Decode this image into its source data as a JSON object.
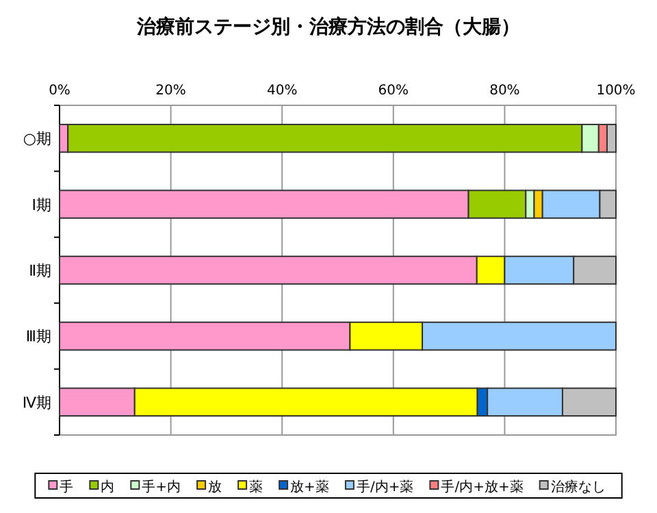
{
  "chart_data": {
    "type": "bar",
    "orientation": "horizontal",
    "stacked": true,
    "title": "治療前ステージ別・治療方法の割合（大腸）",
    "categories": [
      "○期",
      "Ⅰ期",
      "Ⅱ期",
      "Ⅲ期",
      "Ⅳ期"
    ],
    "series": [
      {
        "name": "手",
        "color": "#ff99cc",
        "values": [
          1.5,
          73.5,
          75.0,
          52.2,
          13.5
        ]
      },
      {
        "name": "内",
        "color": "#99cc00",
        "values": [
          92.4,
          10.3,
          0,
          0,
          0
        ]
      },
      {
        "name": "手+内",
        "color": "#ccffcc",
        "values": [
          3.0,
          1.5,
          0,
          0,
          0
        ]
      },
      {
        "name": "放",
        "color": "#ffcc00",
        "values": [
          0,
          1.5,
          0,
          0,
          0
        ]
      },
      {
        "name": "薬",
        "color": "#ffff00",
        "values": [
          0,
          0,
          5.0,
          13.0,
          61.6
        ]
      },
      {
        "name": "放+薬",
        "color": "#0066cc",
        "values": [
          0,
          0,
          0,
          0,
          1.8
        ]
      },
      {
        "name": "手/内+薬",
        "color": "#99ccff",
        "values": [
          0,
          10.3,
          12.4,
          34.8,
          13.5
        ]
      },
      {
        "name": "手/内+放+薬",
        "color": "#ff8080",
        "values": [
          1.5,
          0,
          0,
          0,
          0
        ]
      },
      {
        "name": "治療なし",
        "color": "#c0c0c0",
        "values": [
          1.6,
          2.9,
          7.6,
          0,
          9.6
        ]
      }
    ],
    "xlim": [
      0,
      100
    ],
    "xticks": [
      {
        "value": 0,
        "label": "0%"
      },
      {
        "value": 20,
        "label": "20%"
      },
      {
        "value": 40,
        "label": "40%"
      },
      {
        "value": 60,
        "label": "60%"
      },
      {
        "value": 80,
        "label": "80%"
      },
      {
        "value": 100,
        "label": "100%"
      }
    ],
    "grid": "x",
    "legend": "bottom"
  }
}
